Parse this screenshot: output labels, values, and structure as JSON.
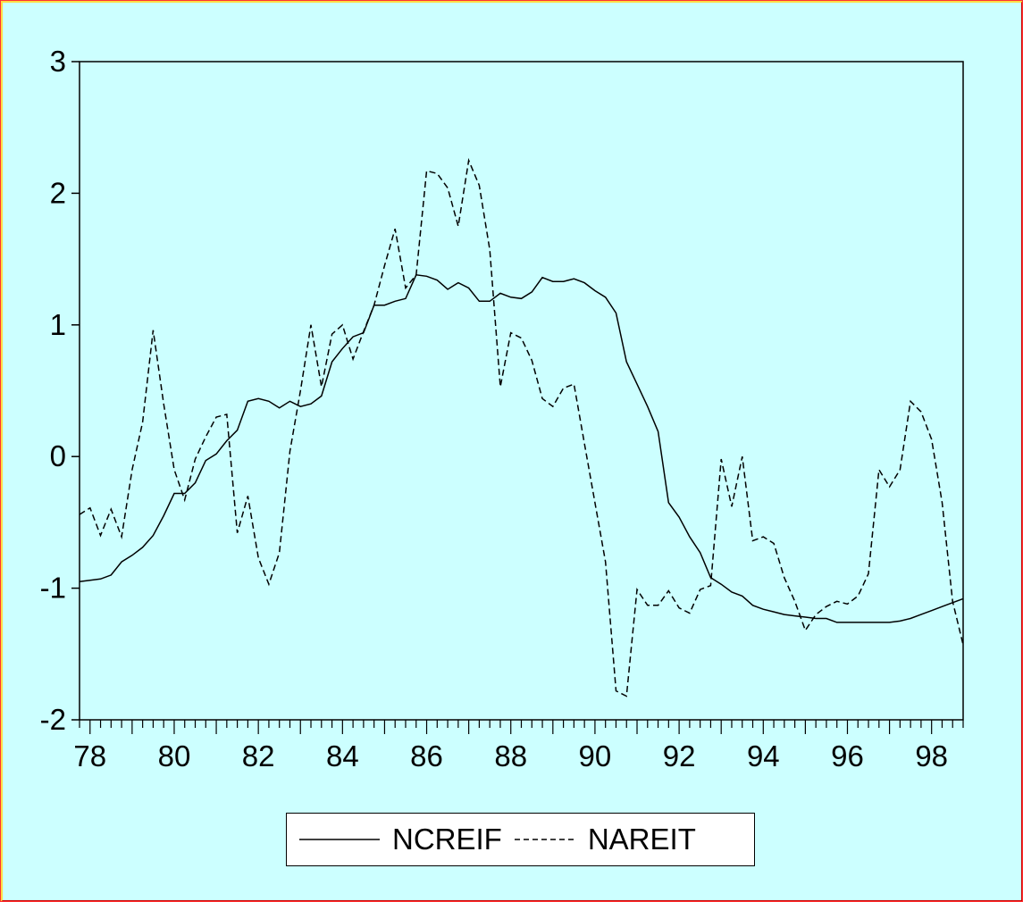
{
  "chart_data": {
    "type": "line",
    "title": "",
    "xlabel": "",
    "ylabel": "",
    "xlim": [
      1977.75,
      1998.75
    ],
    "ylim": [
      -2,
      3
    ],
    "y_ticks": [
      3,
      2,
      1,
      0,
      -1,
      -2
    ],
    "y_tick_labels": [
      "3",
      "2",
      "1",
      "0",
      "-1",
      "-2"
    ],
    "x_tick_labels": [
      "78",
      "80",
      "82",
      "84",
      "86",
      "88",
      "90",
      "92",
      "94",
      "96",
      "98"
    ],
    "x_tick_values": [
      1978,
      1980,
      1982,
      1984,
      1986,
      1988,
      1990,
      1992,
      1994,
      1996,
      1998
    ],
    "grid": false,
    "legend_placement": "bottom-center",
    "series": [
      {
        "name": "NCREIF",
        "style": "solid",
        "color": "#000000",
        "points": [
          [
            1977.75,
            -0.95
          ],
          [
            1978.0,
            -0.94
          ],
          [
            1978.25,
            -0.93
          ],
          [
            1978.5,
            -0.9
          ],
          [
            1978.75,
            -0.8
          ],
          [
            1979.0,
            -0.75
          ],
          [
            1979.25,
            -0.69
          ],
          [
            1979.5,
            -0.6
          ],
          [
            1979.75,
            -0.45
          ],
          [
            1980.0,
            -0.28
          ],
          [
            1980.25,
            -0.28
          ],
          [
            1980.5,
            -0.2
          ],
          [
            1980.75,
            -0.03
          ],
          [
            1981.0,
            0.02
          ],
          [
            1981.25,
            0.12
          ],
          [
            1981.5,
            0.2
          ],
          [
            1981.75,
            0.42
          ],
          [
            1982.0,
            0.44
          ],
          [
            1982.25,
            0.42
          ],
          [
            1982.5,
            0.37
          ],
          [
            1982.75,
            0.42
          ],
          [
            1983.0,
            0.38
          ],
          [
            1983.25,
            0.4
          ],
          [
            1983.5,
            0.46
          ],
          [
            1983.75,
            0.72
          ],
          [
            1984.0,
            0.82
          ],
          [
            1984.25,
            0.91
          ],
          [
            1984.5,
            0.94
          ],
          [
            1984.75,
            1.15
          ],
          [
            1985.0,
            1.15
          ],
          [
            1985.25,
            1.18
          ],
          [
            1985.5,
            1.2
          ],
          [
            1985.75,
            1.38
          ],
          [
            1986.0,
            1.37
          ],
          [
            1986.25,
            1.34
          ],
          [
            1986.5,
            1.27
          ],
          [
            1986.75,
            1.32
          ],
          [
            1987.0,
            1.28
          ],
          [
            1987.25,
            1.18
          ],
          [
            1987.5,
            1.18
          ],
          [
            1987.75,
            1.24
          ],
          [
            1988.0,
            1.21
          ],
          [
            1988.25,
            1.2
          ],
          [
            1988.5,
            1.25
          ],
          [
            1988.75,
            1.36
          ],
          [
            1989.0,
            1.33
          ],
          [
            1989.25,
            1.33
          ],
          [
            1989.5,
            1.35
          ],
          [
            1989.75,
            1.32
          ],
          [
            1990.0,
            1.26
          ],
          [
            1990.25,
            1.21
          ],
          [
            1990.5,
            1.09
          ],
          [
            1990.75,
            0.72
          ],
          [
            1991.0,
            0.55
          ],
          [
            1991.25,
            0.38
          ],
          [
            1991.5,
            0.19
          ],
          [
            1991.75,
            -0.35
          ],
          [
            1992.0,
            -0.46
          ],
          [
            1992.25,
            -0.61
          ],
          [
            1992.5,
            -0.73
          ],
          [
            1992.75,
            -0.92
          ],
          [
            1993.0,
            -0.97
          ],
          [
            1993.25,
            -1.03
          ],
          [
            1993.5,
            -1.06
          ],
          [
            1993.75,
            -1.13
          ],
          [
            1994.0,
            -1.16
          ],
          [
            1994.25,
            -1.18
          ],
          [
            1994.5,
            -1.2
          ],
          [
            1994.75,
            -1.21
          ],
          [
            1995.0,
            -1.22
          ],
          [
            1995.25,
            -1.23
          ],
          [
            1995.5,
            -1.23
          ],
          [
            1995.75,
            -1.26
          ],
          [
            1996.0,
            -1.26
          ],
          [
            1996.25,
            -1.26
          ],
          [
            1996.5,
            -1.26
          ],
          [
            1996.75,
            -1.26
          ],
          [
            1997.0,
            -1.26
          ],
          [
            1997.25,
            -1.25
          ],
          [
            1997.5,
            -1.23
          ],
          [
            1997.75,
            -1.2
          ],
          [
            1998.0,
            -1.17
          ],
          [
            1998.25,
            -1.14
          ],
          [
            1998.5,
            -1.11
          ],
          [
            1998.75,
            -1.08
          ]
        ]
      },
      {
        "name": "NAREIT",
        "style": "dashed",
        "color": "#000000",
        "points": [
          [
            1977.75,
            -0.44
          ],
          [
            1978.0,
            -0.39
          ],
          [
            1978.25,
            -0.6
          ],
          [
            1978.5,
            -0.4
          ],
          [
            1978.75,
            -0.61
          ],
          [
            1979.0,
            -0.1
          ],
          [
            1979.25,
            0.26
          ],
          [
            1979.5,
            0.96
          ],
          [
            1979.75,
            0.4
          ],
          [
            1980.0,
            -0.1
          ],
          [
            1980.25,
            -0.33
          ],
          [
            1980.5,
            -0.02
          ],
          [
            1980.75,
            0.15
          ],
          [
            1981.0,
            0.3
          ],
          [
            1981.25,
            0.32
          ],
          [
            1981.5,
            -0.58
          ],
          [
            1981.75,
            -0.3
          ],
          [
            1982.0,
            -0.77
          ],
          [
            1982.25,
            -0.97
          ],
          [
            1982.5,
            -0.73
          ],
          [
            1982.75,
            0.04
          ],
          [
            1983.0,
            0.5
          ],
          [
            1983.25,
            1.0
          ],
          [
            1983.5,
            0.53
          ],
          [
            1983.75,
            0.93
          ],
          [
            1984.0,
            1.0
          ],
          [
            1984.25,
            0.74
          ],
          [
            1984.5,
            0.95
          ],
          [
            1984.75,
            1.15
          ],
          [
            1985.0,
            1.45
          ],
          [
            1985.25,
            1.73
          ],
          [
            1985.5,
            1.28
          ],
          [
            1985.75,
            1.38
          ],
          [
            1986.0,
            2.17
          ],
          [
            1986.25,
            2.15
          ],
          [
            1986.5,
            2.04
          ],
          [
            1986.75,
            1.75
          ],
          [
            1987.0,
            2.25
          ],
          [
            1987.25,
            2.06
          ],
          [
            1987.5,
            1.57
          ],
          [
            1987.75,
            0.53
          ],
          [
            1988.0,
            0.94
          ],
          [
            1988.25,
            0.9
          ],
          [
            1988.5,
            0.73
          ],
          [
            1988.75,
            0.44
          ],
          [
            1989.0,
            0.38
          ],
          [
            1989.25,
            0.52
          ],
          [
            1989.5,
            0.55
          ],
          [
            1989.75,
            0.1
          ],
          [
            1990.0,
            -0.35
          ],
          [
            1990.25,
            -0.8
          ],
          [
            1990.5,
            -1.78
          ],
          [
            1990.75,
            -1.82
          ],
          [
            1991.0,
            -1.01
          ],
          [
            1991.25,
            -1.13
          ],
          [
            1991.5,
            -1.13
          ],
          [
            1991.75,
            -1.02
          ],
          [
            1992.0,
            -1.15
          ],
          [
            1992.25,
            -1.19
          ],
          [
            1992.5,
            -1.01
          ],
          [
            1992.75,
            -0.98
          ],
          [
            1993.0,
            -0.02
          ],
          [
            1993.25,
            -0.38
          ],
          [
            1993.5,
            0.0
          ],
          [
            1993.75,
            -0.64
          ],
          [
            1994.0,
            -0.61
          ],
          [
            1994.25,
            -0.66
          ],
          [
            1994.5,
            -0.92
          ],
          [
            1994.75,
            -1.1
          ],
          [
            1995.0,
            -1.32
          ],
          [
            1995.25,
            -1.2
          ],
          [
            1995.5,
            -1.14
          ],
          [
            1995.75,
            -1.1
          ],
          [
            1996.0,
            -1.12
          ],
          [
            1996.25,
            -1.06
          ],
          [
            1996.5,
            -0.89
          ],
          [
            1996.75,
            -0.1
          ],
          [
            1997.0,
            -0.23
          ],
          [
            1997.25,
            -0.1
          ],
          [
            1997.5,
            0.42
          ],
          [
            1997.75,
            0.34
          ],
          [
            1998.0,
            0.13
          ],
          [
            1998.25,
            -0.35
          ],
          [
            1998.5,
            -1.1
          ],
          [
            1998.75,
            -1.43
          ]
        ]
      }
    ]
  }
}
